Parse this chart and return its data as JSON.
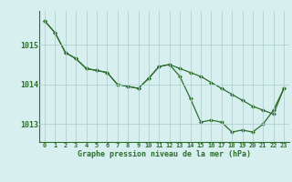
{
  "xlabel": "Graphe pression niveau de la mer (hPa)",
  "hours": [
    0,
    1,
    2,
    3,
    4,
    5,
    6,
    7,
    8,
    9,
    10,
    11,
    12,
    13,
    14,
    15,
    16,
    17,
    18,
    19,
    20,
    21,
    22,
    23
  ],
  "line1": [
    1015.6,
    1015.3,
    1014.8,
    1014.65,
    1014.4,
    1014.35,
    1014.3,
    1014.0,
    1013.95,
    1013.9,
    1014.15,
    1014.45,
    1014.5,
    1014.2,
    1013.65,
    1013.05,
    1013.1,
    1013.05,
    1012.8,
    1012.85,
    1012.8,
    1013.0,
    1013.35,
    1013.9
  ],
  "line2": [
    1015.6,
    1015.3,
    1014.8,
    1014.65,
    1014.4,
    1014.35,
    1014.3,
    1014.0,
    1013.95,
    1013.9,
    1014.15,
    1014.45,
    1014.5,
    1014.4,
    1014.3,
    1014.2,
    1014.05,
    1013.9,
    1013.75,
    1013.6,
    1013.45,
    1013.35,
    1013.25,
    1013.9
  ],
  "line_color": "#2d6e2d",
  "marker": "D",
  "marker_size": 2.0,
  "line_width": 0.9,
  "bg_color": "#d8eff0",
  "grid_color": "#b0d0d0",
  "text_color": "#2d6e2d",
  "ylim_min": 1012.55,
  "ylim_max": 1015.85,
  "yticks": [
    1013,
    1014,
    1015
  ],
  "xticks": [
    0,
    1,
    2,
    3,
    4,
    5,
    6,
    7,
    8,
    9,
    10,
    11,
    12,
    13,
    14,
    15,
    16,
    17,
    18,
    19,
    20,
    21,
    22,
    23
  ]
}
